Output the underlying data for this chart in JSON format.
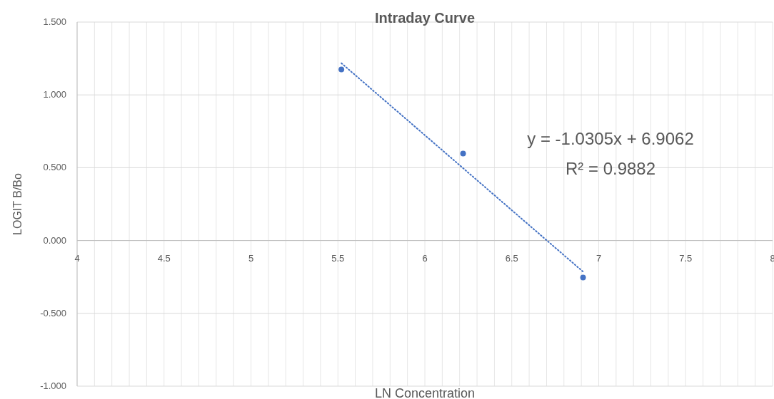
{
  "chart_data": {
    "type": "scatter",
    "title": "Intraday Curve",
    "xlabel": "LN Concentration",
    "ylabel": "LOGIT B/Bo",
    "xlim": [
      4,
      8
    ],
    "xticks": [
      4,
      {
        "value": 4.1,
        "label": null
      },
      {
        "value": 4.2,
        "label": null
      },
      {
        "value": 4.3,
        "label": null
      },
      {
        "value": 4.4,
        "label": null
      },
      4.5,
      {
        "value": 4.6,
        "label": null
      },
      {
        "value": 4.7,
        "label": null
      },
      {
        "value": 4.8,
        "label": null
      },
      {
        "value": 4.9,
        "label": null
      },
      5,
      {
        "value": 5.1,
        "label": null
      },
      {
        "value": 5.2,
        "label": null
      },
      {
        "value": 5.3,
        "label": null
      },
      {
        "value": 5.4,
        "label": null
      },
      5.5,
      {
        "value": 5.6,
        "label": null
      },
      {
        "value": 5.7,
        "label": null
      },
      {
        "value": 5.8,
        "label": null
      },
      {
        "value": 5.9,
        "label": null
      },
      6,
      {
        "value": 6.1,
        "label": null
      },
      {
        "value": 6.2,
        "label": null
      },
      {
        "value": 6.3,
        "label": null
      },
      {
        "value": 6.4,
        "label": null
      },
      6.5,
      {
        "value": 6.6,
        "label": null
      },
      {
        "value": 6.7,
        "label": null
      },
      {
        "value": 6.8,
        "label": null
      },
      {
        "value": 6.9,
        "label": null
      },
      7,
      {
        "value": 7.1,
        "label": null
      },
      {
        "value": 7.2,
        "label": null
      },
      {
        "value": 7.3,
        "label": null
      },
      {
        "value": 7.4,
        "label": null
      },
      7.5,
      {
        "value": 7.6,
        "label": null
      },
      {
        "value": 7.7,
        "label": null
      },
      {
        "value": 7.8,
        "label": null
      },
      {
        "value": 7.9,
        "label": null
      },
      8
    ],
    "ylim": [
      -1,
      1.5
    ],
    "yticks": [
      {
        "value": -1,
        "label": "-1.000"
      },
      {
        "value": -0.5,
        "label": "-0.500"
      },
      {
        "value": 0,
        "label": "0.000"
      },
      {
        "value": 0.5,
        "label": "0.500"
      },
      {
        "value": 1,
        "label": "1.000"
      },
      {
        "value": 1.5,
        "label": "1.500"
      }
    ],
    "grid": true,
    "series": [
      {
        "color": "#4472c4",
        "marker": "circle",
        "x": [
          5.52,
          6.22,
          6.91
        ],
        "values": [
          1.175,
          0.597,
          -0.254
        ]
      },
      {
        "type": "line",
        "color": "#4472c4",
        "line_style": "dotted",
        "x": [
          5.52,
          6.91
        ],
        "values": [
          1.218,
          -0.214
        ]
      }
    ],
    "annotations": [
      "y = -1.0305x + 6.9062",
      "R² = 0.9882"
    ]
  }
}
